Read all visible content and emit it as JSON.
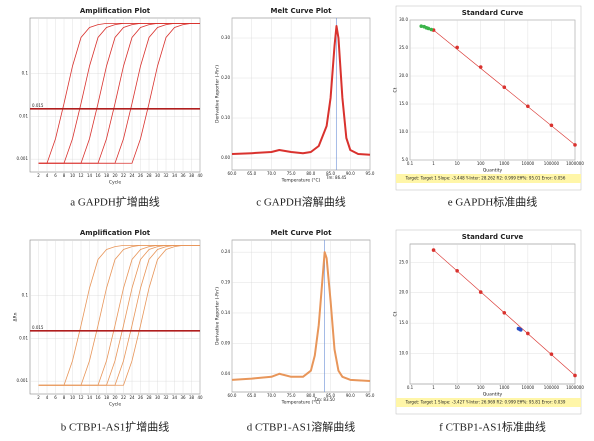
{
  "chart_data": [
    {
      "type": "line",
      "title": "Amplification Plot",
      "xlabel": "Cycle",
      "caption": "a GAPDH扩增曲线",
      "yscale": "log",
      "color": "#d9322e",
      "grid": true,
      "xlim": [
        0,
        40
      ],
      "xticks": [
        2,
        4,
        6,
        8,
        10,
        12,
        14,
        16,
        18,
        20,
        22,
        24,
        26,
        28,
        30,
        32,
        34,
        36,
        38,
        40
      ],
      "ylim": [
        0.0005,
        2
      ],
      "yticks": [
        0.001,
        0.01,
        0.1
      ],
      "threshold": 0.015,
      "threshold_color": "#b01e1e",
      "x": [
        2,
        4,
        6,
        8,
        10,
        12,
        14,
        16,
        18,
        20,
        22,
        24,
        26,
        28,
        30,
        32,
        34,
        36,
        38,
        40
      ],
      "series": [
        {
          "values": [
            0.0008,
            0.0008,
            0.003,
            0.02,
            0.15,
            0.7,
            1.2,
            1.4,
            1.5,
            1.5,
            1.5,
            1.5,
            1.5,
            1.5,
            1.5,
            1.5,
            1.5,
            1.5,
            1.5,
            1.5
          ]
        },
        {
          "values": [
            0.0008,
            0.0008,
            0.0008,
            0.0008,
            0.003,
            0.02,
            0.15,
            0.7,
            1.2,
            1.4,
            1.5,
            1.5,
            1.5,
            1.5,
            1.5,
            1.5,
            1.5,
            1.5,
            1.5,
            1.5
          ]
        },
        {
          "values": [
            0.0008,
            0.0008,
            0.0008,
            0.0008,
            0.0008,
            0.0008,
            0.003,
            0.02,
            0.15,
            0.7,
            1.2,
            1.4,
            1.5,
            1.5,
            1.5,
            1.5,
            1.5,
            1.5,
            1.5,
            1.5
          ]
        },
        {
          "values": [
            0.0008,
            0.0008,
            0.0008,
            0.0008,
            0.0008,
            0.0008,
            0.0008,
            0.0008,
            0.003,
            0.02,
            0.15,
            0.7,
            1.2,
            1.4,
            1.5,
            1.5,
            1.5,
            1.5,
            1.5,
            1.5
          ]
        },
        {
          "values": [
            0.0008,
            0.0008,
            0.0008,
            0.0008,
            0.0008,
            0.0008,
            0.0008,
            0.0008,
            0.0008,
            0.0008,
            0.003,
            0.02,
            0.15,
            0.7,
            1.2,
            1.4,
            1.5,
            1.5,
            1.5,
            1.5
          ]
        },
        {
          "values": [
            0.0008,
            0.0008,
            0.0008,
            0.0008,
            0.0008,
            0.0008,
            0.0008,
            0.0008,
            0.0008,
            0.0008,
            0.0008,
            0.0008,
            0.003,
            0.02,
            0.15,
            0.7,
            1.2,
            1.4,
            1.5,
            1.5
          ]
        }
      ]
    },
    {
      "type": "melt",
      "title": "Melt Curve Plot",
      "xlabel": "Temperature (°C)",
      "ylabel": "Derivative Reporter (-Rn')",
      "caption": "c GAPDH溶解曲线",
      "color": "#d9322e",
      "grid": true,
      "xlim": [
        60,
        95
      ],
      "xticks": [
        {
          "value": 60,
          "label": "60.0"
        },
        {
          "value": 65,
          "label": "65.0"
        },
        {
          "value": 70,
          "label": "70.0"
        },
        {
          "value": 75,
          "label": "75.0"
        },
        {
          "value": 80,
          "label": "80.0"
        },
        {
          "value": 85,
          "label": "85.0"
        },
        {
          "value": 90,
          "label": "90.0"
        },
        {
          "value": 95,
          "label": "95.0"
        }
      ],
      "ylim": [
        -0.03,
        0.35
      ],
      "yticks": [
        {
          "value": 0,
          "label": "0.00"
        },
        {
          "value": 0.1,
          "label": "0.10"
        },
        {
          "value": 0.2,
          "label": "0.20"
        },
        {
          "value": 0.3,
          "label": "0.30"
        }
      ],
      "tm": {
        "value": 86.45,
        "label": "Tm: 86.45"
      },
      "x": [
        60,
        65,
        70,
        72,
        75,
        78,
        80,
        82,
        84,
        85,
        86,
        86.5,
        87,
        88,
        89,
        90,
        92,
        95
      ],
      "series": [
        {
          "values": [
            0.01,
            0.012,
            0.015,
            0.02,
            0.015,
            0.012,
            0.015,
            0.03,
            0.08,
            0.15,
            0.28,
            0.33,
            0.3,
            0.15,
            0.05,
            0.02,
            0.01,
            0.008
          ]
        }
      ]
    },
    {
      "type": "scatter",
      "title": "Standard Curve",
      "xlabel": "Quantity",
      "ylabel": "Ct",
      "caption": "e GAPDH标准曲线",
      "xscale": "log",
      "grid": true,
      "fit_color": "#d9322e",
      "xlim": [
        0.1,
        1000000
      ],
      "xticks": [
        0.1,
        1,
        10,
        100,
        1000,
        10000,
        100000,
        1000000
      ],
      "ylim": [
        5,
        30
      ],
      "yticks": [
        {
          "value": 5,
          "label": "5.0"
        },
        {
          "value": 10,
          "label": "10.0"
        },
        {
          "value": 15,
          "label": "15.0"
        },
        {
          "value": 20,
          "label": "20.0"
        },
        {
          "value": 25,
          "label": "25.0"
        },
        {
          "value": 30,
          "label": "30.0"
        }
      ],
      "footer": "Target: Target 1  Slope: -3.448  Y-Inter: 28.262  R2: 0.999  Eff%: 95.01  Error: 0.056",
      "series": [
        {
          "color": "#d9322e",
          "x": [
            1,
            10,
            100,
            1000,
            10000,
            100000,
            1000000
          ],
          "values": [
            28.2,
            25.1,
            21.6,
            18.0,
            14.6,
            11.2,
            7.7
          ]
        },
        {
          "color": "#3bb44a",
          "x": [
            0.3,
            0.4,
            0.5,
            0.6,
            0.8
          ],
          "values": [
            28.9,
            28.8,
            28.6,
            28.5,
            28.3
          ]
        }
      ]
    },
    {
      "type": "line",
      "title": "Amplification Plot",
      "xlabel": "Cycle",
      "ylabel": "ΔRn",
      "caption": "b CTBP1-AS1扩增曲线",
      "yscale": "log",
      "color": "#e8965a",
      "grid": true,
      "xlim": [
        0,
        40
      ],
      "xticks": [
        2,
        4,
        6,
        8,
        10,
        12,
        14,
        16,
        18,
        20,
        22,
        24,
        26,
        28,
        30,
        32,
        34,
        36,
        38,
        40
      ],
      "ylim": [
        0.0005,
        2
      ],
      "yticks": [
        0.001,
        0.01,
        0.1
      ],
      "threshold": 0.015,
      "threshold_color": "#b01e1e",
      "x": [
        2,
        4,
        6,
        8,
        10,
        12,
        14,
        16,
        18,
        20,
        22,
        24,
        26,
        28,
        30,
        32,
        34,
        36,
        38,
        40
      ],
      "series": [
        {
          "values": [
            0.0008,
            0.0008,
            0.0008,
            0.0008,
            0.003,
            0.02,
            0.15,
            0.7,
            1.2,
            1.4,
            1.5,
            1.5,
            1.5,
            1.5,
            1.5,
            1.5,
            1.5,
            1.5,
            1.5,
            1.5
          ]
        },
        {
          "values": [
            0.0008,
            0.0008,
            0.0008,
            0.0008,
            0.0008,
            0.0008,
            0.003,
            0.02,
            0.15,
            0.7,
            1.2,
            1.4,
            1.5,
            1.5,
            1.5,
            1.5,
            1.5,
            1.5,
            1.5,
            1.5
          ]
        },
        {
          "values": [
            0.0008,
            0.0008,
            0.0008,
            0.0008,
            0.0008,
            0.0008,
            0.0008,
            0.0008,
            0.003,
            0.02,
            0.15,
            0.7,
            1.2,
            1.4,
            1.5,
            1.5,
            1.5,
            1.5,
            1.5,
            1.5
          ]
        },
        {
          "values": [
            0.0008,
            0.0008,
            0.0008,
            0.0008,
            0.0008,
            0.0008,
            0.0008,
            0.0008,
            0.0008,
            0.003,
            0.02,
            0.15,
            0.7,
            1.2,
            1.4,
            1.5,
            1.5,
            1.5,
            1.5,
            1.5
          ]
        },
        {
          "values": [
            0.0008,
            0.0008,
            0.0008,
            0.0008,
            0.0008,
            0.0008,
            0.0008,
            0.0008,
            0.0008,
            0.0008,
            0.003,
            0.02,
            0.15,
            0.7,
            1.2,
            1.4,
            1.5,
            1.5,
            1.5,
            1.5
          ]
        },
        {
          "values": [
            0.0008,
            0.0008,
            0.0008,
            0.0008,
            0.0008,
            0.0008,
            0.0008,
            0.0008,
            0.0008,
            0.0008,
            0.0008,
            0.003,
            0.02,
            0.15,
            0.7,
            1.2,
            1.4,
            1.5,
            1.5,
            1.5
          ]
        }
      ]
    },
    {
      "type": "melt",
      "title": "Melt Curve Plot",
      "xlabel": "Temperature (°C)",
      "ylabel": "Derivative Reporter (-Rn')",
      "caption": "d CTBP1-AS1溶解曲线",
      "color": "#e8965a",
      "grid": true,
      "xlim": [
        60,
        95
      ],
      "xticks": [
        {
          "value": 60,
          "label": "60.0"
        },
        {
          "value": 65,
          "label": "65.0"
        },
        {
          "value": 70,
          "label": "70.0"
        },
        {
          "value": 75,
          "label": "75.0"
        },
        {
          "value": 80,
          "label": "80.0"
        },
        {
          "value": 85,
          "label": "85.0"
        },
        {
          "value": 90,
          "label": "90.0"
        },
        {
          "value": 95,
          "label": "95.0"
        }
      ],
      "ylim": [
        0.01,
        0.26
      ],
      "yticks": [
        0.04,
        0.09,
        0.14,
        0.19,
        0.24
      ],
      "tm": {
        "value": 83.5,
        "label": "Tm: 83.50"
      },
      "x": [
        60,
        65,
        70,
        72,
        75,
        78,
        80,
        81,
        82,
        83,
        83.5,
        84,
        85,
        86,
        87,
        88,
        90,
        95
      ],
      "series": [
        {
          "values": [
            0.03,
            0.032,
            0.035,
            0.04,
            0.035,
            0.035,
            0.045,
            0.07,
            0.12,
            0.2,
            0.24,
            0.23,
            0.16,
            0.08,
            0.045,
            0.035,
            0.03,
            0.028
          ]
        }
      ]
    },
    {
      "type": "scatter",
      "title": "Standard Curve",
      "xlabel": "Quantity",
      "ylabel": "Ct",
      "caption": "f CTBP1-AS1标准曲线",
      "xscale": "log",
      "grid": true,
      "fit_color": "#d9322e",
      "xlim": [
        0.1,
        1000000
      ],
      "xticks": [
        0.1,
        1,
        10,
        100,
        1000,
        10000,
        100000,
        1000000
      ],
      "ylim": [
        5,
        28
      ],
      "yticks": [
        {
          "value": 10,
          "label": "10.0"
        },
        {
          "value": 15,
          "label": "15.0"
        },
        {
          "value": 20,
          "label": "20.0"
        },
        {
          "value": 25,
          "label": "25.0"
        }
      ],
      "footer": "Target: Target 1  Slope: -3.427  Y-Inter: 26.969  R2: 0.999  Eff%: 95.81  Error: 0.039",
      "series": [
        {
          "color": "#d9322e",
          "x": [
            1,
            10,
            100,
            1000,
            10000,
            100000,
            1000000
          ],
          "values": [
            27.0,
            23.6,
            20.1,
            16.7,
            13.3,
            9.9,
            6.4
          ]
        },
        {
          "color": "#2a4fc4",
          "x": [
            4000,
            4500,
            5000
          ],
          "values": [
            14.1,
            14.0,
            13.9
          ]
        }
      ]
    }
  ]
}
